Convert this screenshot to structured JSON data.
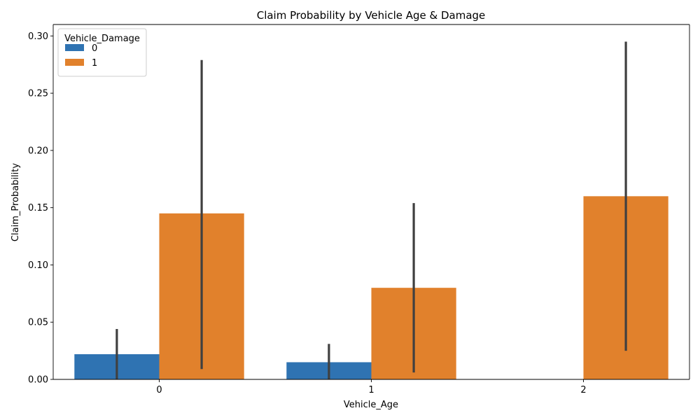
{
  "chart_data": {
    "type": "bar",
    "title": "Claim Probability by Vehicle Age & Damage",
    "xlabel": "Vehicle_Age",
    "ylabel": "Claim_Probability",
    "categories": [
      "0",
      "1",
      "2"
    ],
    "ylim": [
      0,
      0.31
    ],
    "yticks": [
      "0.00",
      "0.05",
      "0.10",
      "0.15",
      "0.20",
      "0.25",
      "0.30"
    ],
    "legend": {
      "title": "Vehicle_Damage",
      "placement": "top-left"
    },
    "grid": false,
    "series": [
      {
        "name": "0",
        "color": "#2f73b2",
        "values": [
          0.022,
          0.015,
          null
        ],
        "error_low": [
          0.0,
          0.0,
          null
        ],
        "error_high": [
          0.044,
          0.031,
          null
        ]
      },
      {
        "name": "1",
        "color": "#e1812c",
        "values": [
          0.145,
          0.08,
          0.16
        ],
        "error_low": [
          0.009,
          0.006,
          0.025
        ],
        "error_high": [
          0.279,
          0.154,
          0.295
        ]
      }
    ],
    "errorbar_color": "#404040"
  }
}
